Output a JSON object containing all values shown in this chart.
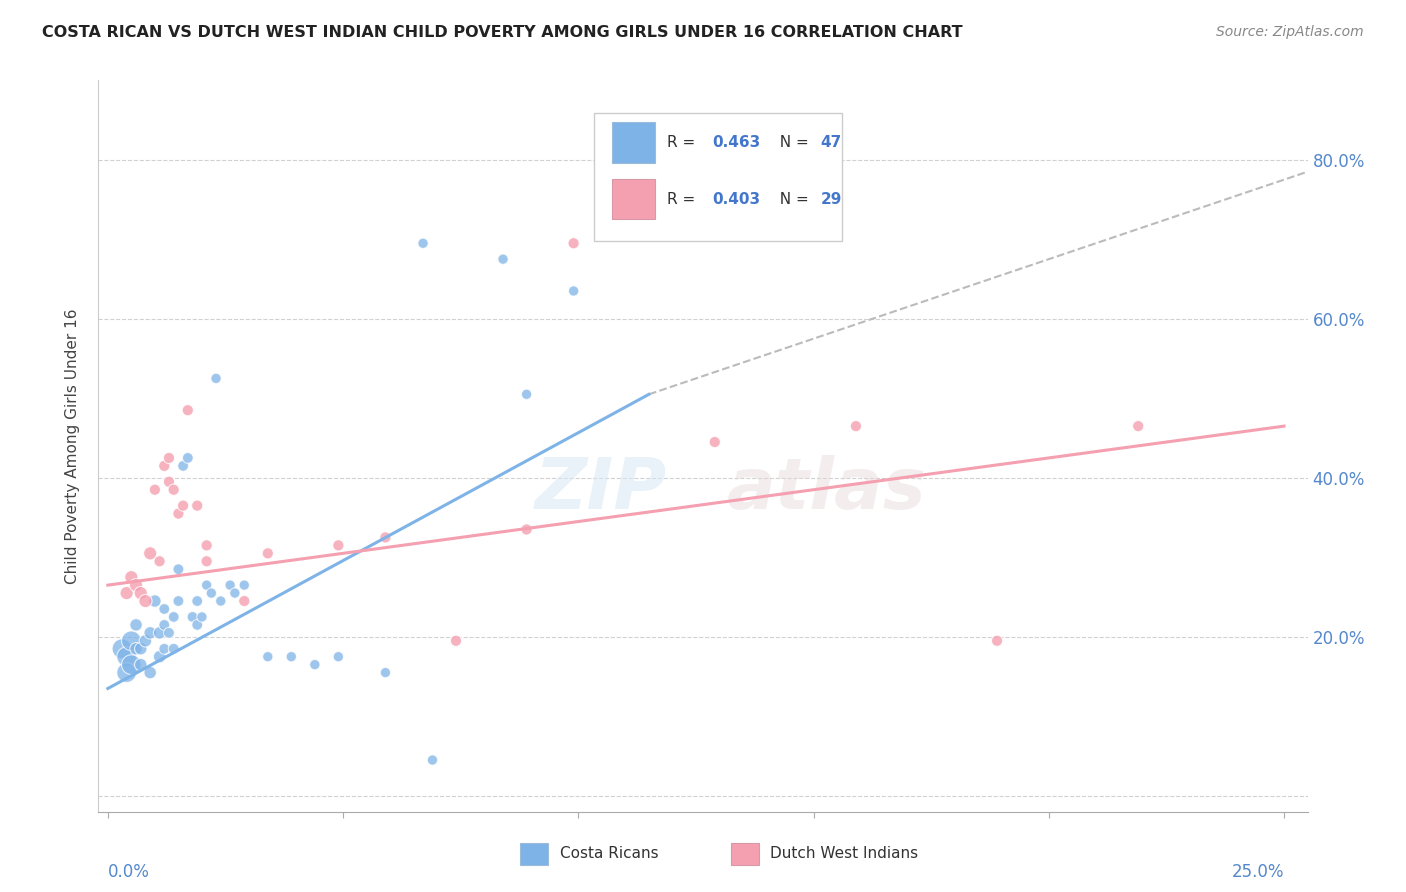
{
  "title": "COSTA RICAN VS DUTCH WEST INDIAN CHILD POVERTY AMONG GIRLS UNDER 16 CORRELATION CHART",
  "source": "Source: ZipAtlas.com",
  "ylabel": "Child Poverty Among Girls Under 16",
  "y_ticks": [
    0.0,
    0.2,
    0.4,
    0.6,
    0.8
  ],
  "y_tick_labels": [
    "",
    "20.0%",
    "40.0%",
    "60.0%",
    "80.0%"
  ],
  "x_ticks": [
    0.0,
    0.05,
    0.1,
    0.15,
    0.2,
    0.25
  ],
  "xlim": [
    -0.002,
    0.255
  ],
  "ylim": [
    -0.02,
    0.9
  ],
  "blue_color": "#7EB3E8",
  "pink_color": "#F4A0B0",
  "blue_scatter": [
    [
      0.003,
      0.185
    ],
    [
      0.004,
      0.175
    ],
    [
      0.004,
      0.155
    ],
    [
      0.005,
      0.165
    ],
    [
      0.005,
      0.195
    ],
    [
      0.006,
      0.185
    ],
    [
      0.006,
      0.215
    ],
    [
      0.007,
      0.165
    ],
    [
      0.007,
      0.185
    ],
    [
      0.008,
      0.195
    ],
    [
      0.009,
      0.205
    ],
    [
      0.009,
      0.155
    ],
    [
      0.01,
      0.245
    ],
    [
      0.011,
      0.175
    ],
    [
      0.011,
      0.205
    ],
    [
      0.012,
      0.235
    ],
    [
      0.012,
      0.215
    ],
    [
      0.012,
      0.185
    ],
    [
      0.013,
      0.205
    ],
    [
      0.014,
      0.225
    ],
    [
      0.014,
      0.185
    ],
    [
      0.015,
      0.285
    ],
    [
      0.015,
      0.245
    ],
    [
      0.016,
      0.415
    ],
    [
      0.017,
      0.425
    ],
    [
      0.018,
      0.225
    ],
    [
      0.019,
      0.245
    ],
    [
      0.019,
      0.215
    ],
    [
      0.02,
      0.225
    ],
    [
      0.021,
      0.265
    ],
    [
      0.022,
      0.255
    ],
    [
      0.023,
      0.525
    ],
    [
      0.024,
      0.245
    ],
    [
      0.026,
      0.265
    ],
    [
      0.027,
      0.255
    ],
    [
      0.029,
      0.265
    ],
    [
      0.034,
      0.175
    ],
    [
      0.039,
      0.175
    ],
    [
      0.044,
      0.165
    ],
    [
      0.049,
      0.175
    ],
    [
      0.059,
      0.155
    ],
    [
      0.067,
      0.695
    ],
    [
      0.069,
      0.045
    ],
    [
      0.084,
      0.675
    ],
    [
      0.089,
      0.505
    ],
    [
      0.099,
      0.635
    ],
    [
      0.114,
      0.725
    ]
  ],
  "pink_scatter": [
    [
      0.004,
      0.255
    ],
    [
      0.005,
      0.275
    ],
    [
      0.006,
      0.265
    ],
    [
      0.007,
      0.255
    ],
    [
      0.008,
      0.245
    ],
    [
      0.009,
      0.305
    ],
    [
      0.01,
      0.385
    ],
    [
      0.011,
      0.295
    ],
    [
      0.012,
      0.415
    ],
    [
      0.013,
      0.425
    ],
    [
      0.013,
      0.395
    ],
    [
      0.014,
      0.385
    ],
    [
      0.015,
      0.355
    ],
    [
      0.016,
      0.365
    ],
    [
      0.017,
      0.485
    ],
    [
      0.019,
      0.365
    ],
    [
      0.021,
      0.295
    ],
    [
      0.021,
      0.315
    ],
    [
      0.029,
      0.245
    ],
    [
      0.034,
      0.305
    ],
    [
      0.049,
      0.315
    ],
    [
      0.059,
      0.325
    ],
    [
      0.074,
      0.195
    ],
    [
      0.089,
      0.335
    ],
    [
      0.099,
      0.695
    ],
    [
      0.129,
      0.445
    ],
    [
      0.159,
      0.465
    ],
    [
      0.189,
      0.195
    ],
    [
      0.219,
      0.465
    ]
  ],
  "blue_R": 0.463,
  "blue_N": 47,
  "pink_R": 0.403,
  "pink_N": 29,
  "blue_line_x": [
    0.0,
    0.115
  ],
  "blue_line_y": [
    0.135,
    0.505
  ],
  "pink_line_x": [
    0.0,
    0.25
  ],
  "pink_line_y": [
    0.265,
    0.465
  ],
  "dash_line_x": [
    0.115,
    0.255
  ],
  "dash_line_y": [
    0.505,
    0.785
  ],
  "watermark_line1": "ZIP",
  "watermark_line2": "atlas"
}
